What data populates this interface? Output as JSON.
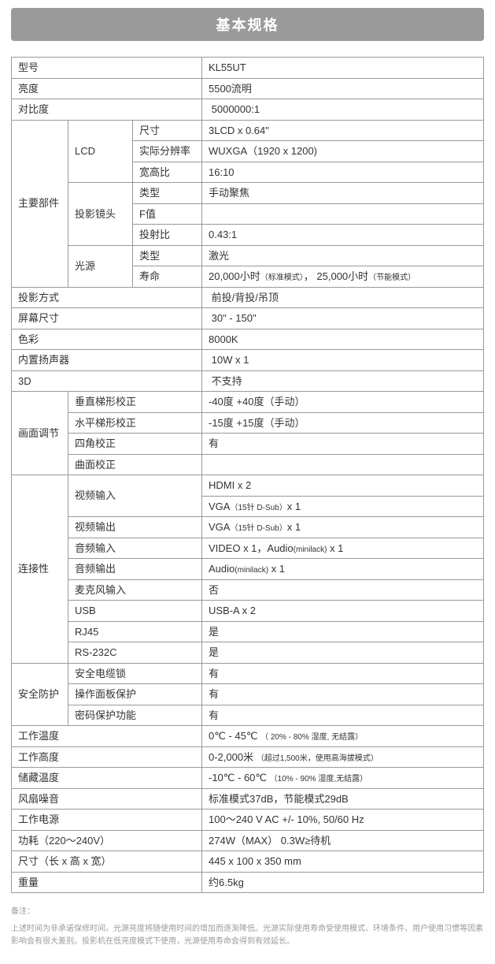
{
  "header": {
    "title": "基本规格"
  },
  "colors": {
    "header_bg": "#9a9a9a",
    "header_text": "#ffffff",
    "border": "#999999",
    "text": "#333333",
    "footer_text": "#9a9a9a"
  },
  "labels": {
    "model": "型号",
    "brightness": "亮度",
    "contrast": "对比度",
    "main_parts": "主要部件",
    "lcd": "LCD",
    "lcd_size": "尺寸",
    "lcd_res": "实际分辨率",
    "lcd_aspect": "宽高比",
    "lens": "投影镜头",
    "lens_type": "类型",
    "lens_f": "F值",
    "lens_throw": "投射比",
    "light": "光源",
    "light_type": "类型",
    "light_life": "寿命",
    "proj_method": "投影方式",
    "screen_size": "屏幕尺寸",
    "color_temp": "色彩",
    "speaker": "内置扬声器",
    "three_d": "3D",
    "image_adj": "画面调节",
    "keystone_v": "垂直梯形校正",
    "keystone_h": "水平梯形校正",
    "corner": "四角校正",
    "curve": "曲面校正",
    "connectivity": "连接性",
    "video_in": "视频输入",
    "video_out": "视频输出",
    "audio_in": "音频输入",
    "audio_out": "音频输出",
    "mic_in": "麦克风输入",
    "usb": "USB",
    "rj45": "RJ45",
    "rs232c": "RS-232C",
    "security": "安全防护",
    "cable_lock": "安全电缆锁",
    "panel_protect": "操作面板保护",
    "pass_protect": "密码保护功能",
    "op_temp": "工作温度",
    "op_alt": "工作高度",
    "store_temp": "储藏温度",
    "fan_noise": "风扇噪音",
    "power_src": "工作电源",
    "power_cons": "功耗（220～240V）",
    "dimensions": "尺寸（长 x 高 x 宽）",
    "weight": "重量"
  },
  "values": {
    "model": "KL55UT",
    "brightness": "5500流明",
    "contrast": "5000000:1",
    "lcd_size": "3LCD x 0.64\"",
    "lcd_res": "WUXGA（1920 x 1200)",
    "lcd_aspect": "16:10",
    "lens_type": "手动聚焦",
    "lens_f": "",
    "lens_throw": "0.43:1",
    "light_type": "激光",
    "light_life_a": "20,000小时",
    "light_life_a_sub": "（标准模式）",
    "light_life_sep": "，  ",
    "light_life_b": "25,000小时",
    "light_life_b_sub": "（节能模式）",
    "proj_method": "前投/背投/吊顶",
    "screen_size": "30\" - 150\"",
    "color_temp": "8000K",
    "speaker": "10W x 1",
    "three_d": "不支持",
    "keystone_v": "-40度   +40度（手动）",
    "keystone_h": "-15度   +15度（手动）",
    "corner": "有",
    "curve": "",
    "video_in_1": "HDMI x 2",
    "video_in_2a": "VGA",
    "video_in_2sub": "（15针 D-Sub）",
    "video_in_2b": "x 1",
    "video_out_a": "VGA",
    "video_out_sub": "（15针 D-Sub）",
    "video_out_b": "x 1",
    "audio_in_a": "VIDEO x 1，Audio",
    "audio_in_sub": "(minilack)",
    "audio_in_b": " x 1",
    "audio_out_a": "Audio",
    "audio_out_sub": "(minilack)",
    "audio_out_b": " x 1",
    "mic_in": "否",
    "usb": "USB-A x 2",
    "rj45": "是",
    "rs232c": "是",
    "cable_lock": "有",
    "panel_protect": "有",
    "pass_protect": "有",
    "op_temp_a": "0℃ - 45℃  ",
    "op_temp_sub": "（ 20% - 80% 湿度, 无结露）",
    "op_alt_a": "0-2,000米 ",
    "op_alt_sub": "（超过1,500米，使用高海拔模式）",
    "store_temp_a": "-10℃ - 60℃ ",
    "store_temp_sub": "（10% - 90% 湿度,无结露）",
    "fan_noise": "标准模式37dB，节能模式29dB",
    "power_src": "100～240 V  AC  +/- 10%,  50/60 Hz",
    "power_cons": "274W（MAX）  0.3W≥待机",
    "dimensions": "445 x 100 x 350 mm",
    "weight": "约6.5kg"
  },
  "footer": {
    "title": "备注：",
    "line1": "上述时间为非承诺保修时间。光源亮度将随使用时间的增加而逐渐降低。光源实际使用寿命受使用模式、环境条件、用户使用习惯等因素影响会有很大差别。投影机在低亮度模式下使用，光源使用寿命会得到有效延长。"
  }
}
